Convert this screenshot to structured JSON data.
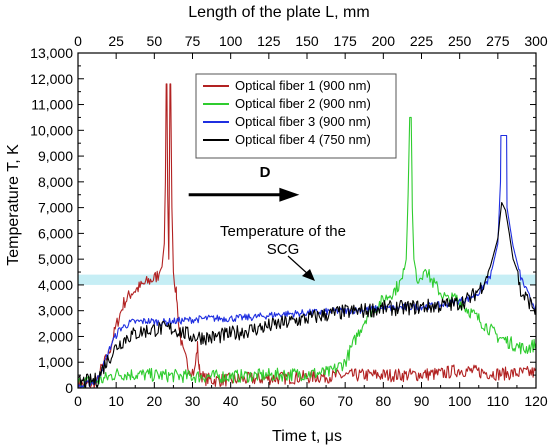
{
  "chart_data": {
    "type": "line",
    "xlabel": "Time t, μs",
    "ylabel": "Temperature T, K",
    "x2label": "Length of the plate  L, mm",
    "xlim": [
      0,
      120
    ],
    "ylim": [
      0,
      13000
    ],
    "x2lim": [
      0,
      300
    ],
    "x_ticks": [
      "0",
      "10",
      "20",
      "30",
      "40",
      "50",
      "60",
      "70",
      "80",
      "90",
      "100",
      "110",
      "120"
    ],
    "y_ticks": [
      "0",
      "1,000",
      "2,000",
      "3,000",
      "4,000",
      "5,000",
      "6,000",
      "7,000",
      "8,000",
      "9,000",
      "10,000",
      "11,000",
      "12,000",
      "13,000"
    ],
    "x2_ticks": [
      "0",
      "25",
      "50",
      "75",
      "100",
      "125",
      "150",
      "175",
      "200",
      "225",
      "250",
      "275",
      "300"
    ],
    "grid": false,
    "legend_position": "top-center",
    "band": {
      "y_from": 4000,
      "y_to": 4400,
      "color": "#c6eef5",
      "label": "Temperature of the SCG"
    },
    "arrow": {
      "label": "D",
      "x_from": 29,
      "x_to": 58,
      "y": 7500
    },
    "series": [
      {
        "name": "Optical fiber 1 (900 nm)",
        "color": "#b22222",
        "points": [
          [
            0,
            100
          ],
          [
            5,
            200
          ],
          [
            6,
            700
          ],
          [
            8,
            1300
          ],
          [
            10,
            2400
          ],
          [
            12,
            3300
          ],
          [
            14,
            3700
          ],
          [
            16,
            3900
          ],
          [
            18,
            4100
          ],
          [
            20,
            4250
          ],
          [
            21,
            4400
          ],
          [
            22,
            4700
          ],
          [
            22.6,
            5600
          ],
          [
            22.9,
            8000
          ],
          [
            23.1,
            11800
          ],
          [
            23.3,
            11800
          ],
          [
            23.5,
            7500
          ],
          [
            23.8,
            5000
          ],
          [
            24.1,
            11800
          ],
          [
            24.3,
            11800
          ],
          [
            24.6,
            7000
          ],
          [
            25,
            4500
          ],
          [
            25.8,
            3600
          ],
          [
            26.5,
            2300
          ],
          [
            27.5,
            1400
          ],
          [
            29,
            800
          ],
          [
            30.5,
            600
          ],
          [
            31.3,
            1600
          ],
          [
            31.8,
            700
          ],
          [
            33,
            350
          ],
          [
            36,
            300
          ],
          [
            45,
            350
          ],
          [
            55,
            400
          ],
          [
            65,
            450
          ],
          [
            75,
            500
          ],
          [
            85,
            500
          ],
          [
            95,
            550
          ],
          [
            100,
            700
          ],
          [
            110,
            550
          ],
          [
            120,
            600
          ]
        ]
      },
      {
        "name": "Optical fiber 2 (900 nm)",
        "color": "#2fcc2f",
        "points": [
          [
            0,
            200
          ],
          [
            6,
            300
          ],
          [
            10,
            550
          ],
          [
            20,
            500
          ],
          [
            30,
            450
          ],
          [
            40,
            450
          ],
          [
            50,
            500
          ],
          [
            60,
            550
          ],
          [
            66,
            600
          ],
          [
            70,
            1000
          ],
          [
            73,
            2000
          ],
          [
            76,
            2900
          ],
          [
            80,
            3400
          ],
          [
            83,
            3800
          ],
          [
            85,
            4200
          ],
          [
            86,
            5000
          ],
          [
            86.5,
            7500
          ],
          [
            86.9,
            10500
          ],
          [
            87.3,
            10500
          ],
          [
            87.6,
            7000
          ],
          [
            88,
            5000
          ],
          [
            89,
            4200
          ],
          [
            91,
            4600
          ],
          [
            93,
            4100
          ],
          [
            95,
            3700
          ],
          [
            97,
            3400
          ],
          [
            99,
            3500
          ],
          [
            101,
            3200
          ],
          [
            104,
            2800
          ],
          [
            107,
            2400
          ],
          [
            110,
            2000
          ],
          [
            114,
            1700
          ],
          [
            117,
            1500
          ],
          [
            120,
            1700
          ]
        ]
      },
      {
        "name": "Optical fiber 3 (900 nm)",
        "color": "#1f2fe0",
        "points": [
          [
            0,
            0
          ],
          [
            5,
            300
          ],
          [
            7,
            1000
          ],
          [
            9,
            1800
          ],
          [
            11,
            2300
          ],
          [
            14,
            2550
          ],
          [
            18,
            2600
          ],
          [
            22,
            2550
          ],
          [
            26,
            2600
          ],
          [
            30,
            2650
          ],
          [
            34,
            2700
          ],
          [
            40,
            2700
          ],
          [
            46,
            2750
          ],
          [
            52,
            2850
          ],
          [
            58,
            2900
          ],
          [
            64,
            2950
          ],
          [
            70,
            3000
          ],
          [
            76,
            3050
          ],
          [
            82,
            3100
          ],
          [
            88,
            3150
          ],
          [
            94,
            3200
          ],
          [
            98,
            3300
          ],
          [
            102,
            3450
          ],
          [
            105,
            3700
          ],
          [
            108,
            4300
          ],
          [
            110,
            5600
          ],
          [
            110.7,
            8000
          ],
          [
            110.8,
            9800
          ],
          [
            112.3,
            9800
          ],
          [
            112.4,
            7000
          ],
          [
            114,
            5500
          ],
          [
            116,
            4300
          ],
          [
            118,
            3600
          ],
          [
            120,
            3100
          ]
        ]
      },
      {
        "name": "Optical fiber 4 (750 nm)",
        "color": "#000000",
        "points": [
          [
            0,
            200
          ],
          [
            5,
            300
          ],
          [
            7,
            900
          ],
          [
            10,
            1600
          ],
          [
            13,
            2000
          ],
          [
            17,
            2200
          ],
          [
            21,
            2300
          ],
          [
            25,
            2300
          ],
          [
            30,
            2000
          ],
          [
            35,
            1950
          ],
          [
            40,
            2100
          ],
          [
            45,
            2250
          ],
          [
            50,
            2400
          ],
          [
            55,
            2550
          ],
          [
            60,
            2700
          ],
          [
            65,
            2850
          ],
          [
            70,
            2950
          ],
          [
            75,
            3000
          ],
          [
            80,
            3100
          ],
          [
            85,
            3100
          ],
          [
            90,
            3150
          ],
          [
            95,
            3200
          ],
          [
            100,
            3300
          ],
          [
            103,
            3500
          ],
          [
            106,
            4000
          ],
          [
            108,
            4700
          ],
          [
            110,
            5800
          ],
          [
            111,
            7200
          ],
          [
            112,
            6900
          ],
          [
            113,
            6000
          ],
          [
            114,
            5000
          ],
          [
            115,
            4600
          ],
          [
            116,
            3700
          ],
          [
            118,
            3400
          ],
          [
            120,
            3000
          ]
        ]
      }
    ]
  }
}
